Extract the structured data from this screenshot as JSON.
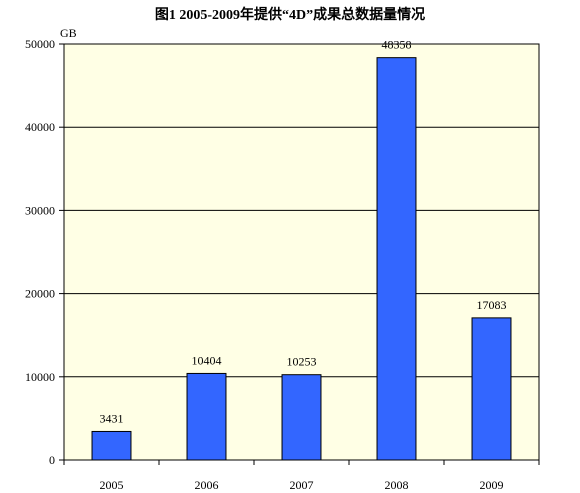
{
  "chart_data": {
    "type": "bar",
    "title": "图1 2005-2009年提供“4D”成果总数据量情况",
    "unit": "GB",
    "categories": [
      "2005",
      "2006",
      "2007",
      "2008",
      "2009"
    ],
    "values": [
      3431,
      10404,
      10253,
      48358,
      17083
    ],
    "ylim": [
      0,
      50000
    ],
    "yticks": [
      "0",
      "10000",
      "20000",
      "30000",
      "40000",
      "50000"
    ],
    "grid": true,
    "legend": "none",
    "bar_color": "#3366ff",
    "plot_background": "#ffffe5"
  }
}
